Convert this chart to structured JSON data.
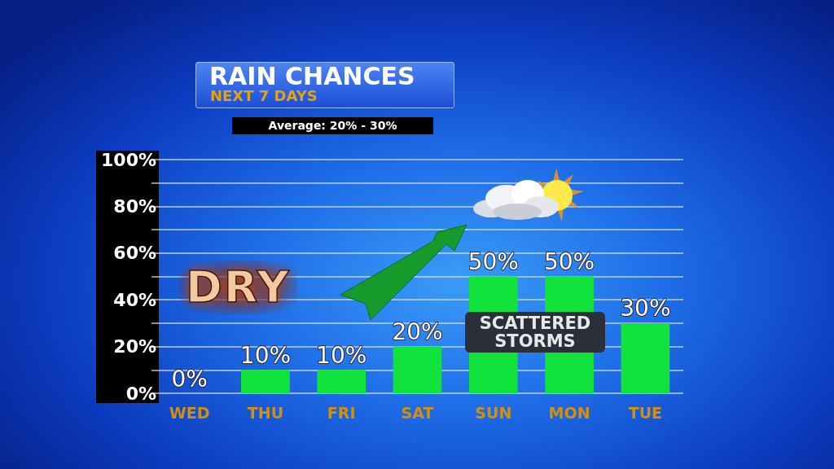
{
  "chart_data": {
    "type": "bar",
    "title": "RAIN CHANCES",
    "subtitle": "NEXT 7 DAYS",
    "annotations": [
      "Average: 20% - 30%",
      "DRY",
      "SCATTERED STORMS"
    ],
    "categories": [
      "WED",
      "THU",
      "FRI",
      "SAT",
      "SUN",
      "MON",
      "TUE"
    ],
    "values": [
      0,
      10,
      10,
      20,
      50,
      50,
      30
    ],
    "value_labels": [
      "0%",
      "10%",
      "10%",
      "20%",
      "50%",
      "50%",
      "30%"
    ],
    "color": "#12e23c",
    "ylim": [
      0,
      100
    ],
    "yticks": [
      {
        "value": 0,
        "label": "0%"
      },
      {
        "value": 10,
        "label": null
      },
      {
        "value": 20,
        "label": "20%"
      },
      {
        "value": 30,
        "label": null
      },
      {
        "value": 40,
        "label": "40%"
      },
      {
        "value": 50,
        "label": null
      },
      {
        "value": 60,
        "label": "60%"
      },
      {
        "value": 70,
        "label": null
      },
      {
        "value": 80,
        "label": "80%"
      },
      {
        "value": 90,
        "label": null
      },
      {
        "value": 100,
        "label": "100%"
      }
    ],
    "grid": "y"
  }
}
